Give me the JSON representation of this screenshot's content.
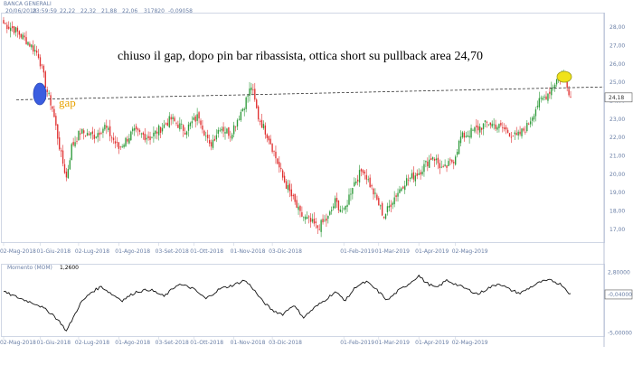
{
  "header": {
    "title": "BANCA GENERALI",
    "date": "20/06/2018",
    "time": "23:59:59",
    "open": "22,22",
    "high": "22,32",
    "low": "21,88",
    "close": "22,06",
    "volume": "317820",
    "change": "-0,09058"
  },
  "annotation": {
    "text": "chiuso il gap, dopo pin bar ribassista, ottica short su pullback area 24,70",
    "gap_label": "gap"
  },
  "last_price_label": "24,18",
  "colors": {
    "bull": "#2e9a3a",
    "bear": "#e03030",
    "axis_text": "#6a7fa6",
    "gap_marker": "#3a5de0",
    "pin_marker": "#f0e21a",
    "gap_text": "#e8a200"
  },
  "chart_data": [
    {
      "type": "candlestick",
      "title": "BANCA GENERALI",
      "y_ticks": [
        "28,00",
        "27,00",
        "26,00",
        "25,00",
        "24,00",
        "23,00",
        "22,00",
        "21,00",
        "20,00",
        "19,00",
        "18,00",
        "17,00"
      ],
      "ylim": [
        16.4,
        28.5
      ],
      "x_ticks": [
        "02-Mag-2018",
        "01-Giu-2018",
        "02-Lug-2018",
        "01-Ago-2018",
        "03-Set-2018",
        "01-Ott-2018",
        "01-Nov-2018",
        "03-Dic-2018",
        "01-Feb-2019",
        "01-Mar-2019",
        "01-Apr-2019",
        "02-Mag-2019"
      ],
      "resistance_level": 24.7,
      "last_close": 24.18,
      "anchors": [
        [
          0,
          28.2
        ],
        [
          6,
          27.9
        ],
        [
          14,
          27.2
        ],
        [
          20,
          26.5
        ],
        [
          25,
          24.5
        ],
        [
          28,
          23.6
        ],
        [
          33,
          21.0
        ],
        [
          36,
          19.8
        ],
        [
          39,
          21.5
        ],
        [
          44,
          22.3
        ],
        [
          52,
          22.1
        ],
        [
          58,
          22.6
        ],
        [
          66,
          21.4
        ],
        [
          74,
          22.3
        ],
        [
          84,
          22.0
        ],
        [
          96,
          23.0
        ],
        [
          104,
          22.4
        ],
        [
          112,
          23.2
        ],
        [
          118,
          21.5
        ],
        [
          124,
          22.6
        ],
        [
          130,
          22.2
        ],
        [
          138,
          23.8
        ],
        [
          142,
          24.8
        ],
        [
          146,
          23.1
        ],
        [
          152,
          22.0
        ],
        [
          160,
          19.8
        ],
        [
          170,
          17.8
        ],
        [
          180,
          17.1
        ],
        [
          186,
          17.6
        ],
        [
          190,
          18.5
        ],
        [
          195,
          17.9
        ],
        [
          200,
          19.4
        ],
        [
          206,
          20.3
        ],
        [
          212,
          19.0
        ],
        [
          218,
          17.7
        ],
        [
          223,
          18.6
        ],
        [
          230,
          19.6
        ],
        [
          238,
          20.1
        ],
        [
          246,
          21.0
        ],
        [
          252,
          20.2
        ],
        [
          258,
          20.8
        ],
        [
          262,
          22.0
        ],
        [
          270,
          22.4
        ],
        [
          278,
          22.8
        ],
        [
          286,
          22.5
        ],
        [
          294,
          22.0
        ],
        [
          300,
          22.6
        ],
        [
          306,
          23.8
        ],
        [
          312,
          24.4
        ],
        [
          318,
          25.3
        ],
        [
          321,
          25.5
        ],
        [
          323,
          24.9
        ],
        [
          325,
          24.2
        ]
      ]
    },
    {
      "type": "line",
      "title": "Momento (MOM)",
      "indicator_label": "Momento (MOM)",
      "indicator_value": "1,2600",
      "y_ticks": [
        "2,80000",
        "-0,04000",
        "-5,00000"
      ],
      "ylim": [
        -5.2,
        3.0
      ],
      "last_value": -0.04,
      "x_ticks": [
        "02-Mag-2018",
        "01-Giu-2018",
        "02-Lug-2018",
        "01-Ago-2018",
        "03-Set-2018",
        "01-Ott-2018",
        "01-Nov-2018",
        "03-Dic-2018",
        "01-Feb-2019",
        "01-Mar-2019",
        "01-Apr-2019",
        "02-Mag-2019"
      ],
      "anchors": [
        [
          0,
          0.3
        ],
        [
          10,
          -0.6
        ],
        [
          20,
          -1.4
        ],
        [
          28,
          -2.6
        ],
        [
          33,
          -3.8
        ],
        [
          36,
          -4.8
        ],
        [
          40,
          -3.0
        ],
        [
          44,
          -1.2
        ],
        [
          50,
          0.2
        ],
        [
          56,
          1.0
        ],
        [
          62,
          0.0
        ],
        [
          68,
          -0.8
        ],
        [
          76,
          0.3
        ],
        [
          84,
          0.6
        ],
        [
          92,
          -0.3
        ],
        [
          100,
          1.3
        ],
        [
          108,
          0.8
        ],
        [
          116,
          -0.6
        ],
        [
          124,
          0.7
        ],
        [
          132,
          1.2
        ],
        [
          138,
          1.8
        ],
        [
          142,
          1.0
        ],
        [
          148,
          -0.8
        ],
        [
          154,
          -2.1
        ],
        [
          160,
          -2.6
        ],
        [
          166,
          -1.4
        ],
        [
          172,
          -3.0
        ],
        [
          178,
          -1.8
        ],
        [
          184,
          -0.8
        ],
        [
          190,
          0.3
        ],
        [
          196,
          -0.8
        ],
        [
          202,
          1.0
        ],
        [
          208,
          1.6
        ],
        [
          214,
          0.5
        ],
        [
          220,
          -0.8
        ],
        [
          226,
          0.4
        ],
        [
          232,
          1.3
        ],
        [
          238,
          2.4
        ],
        [
          242,
          1.5
        ],
        [
          248,
          0.8
        ],
        [
          254,
          1.8
        ],
        [
          260,
          1.2
        ],
        [
          266,
          0.6
        ],
        [
          272,
          0.0
        ],
        [
          278,
          0.8
        ],
        [
          284,
          1.4
        ],
        [
          290,
          0.6
        ],
        [
          296,
          0.1
        ],
        [
          302,
          0.9
        ],
        [
          308,
          1.6
        ],
        [
          314,
          1.8
        ],
        [
          320,
          1.2
        ],
        [
          325,
          -0.04
        ]
      ]
    }
  ]
}
